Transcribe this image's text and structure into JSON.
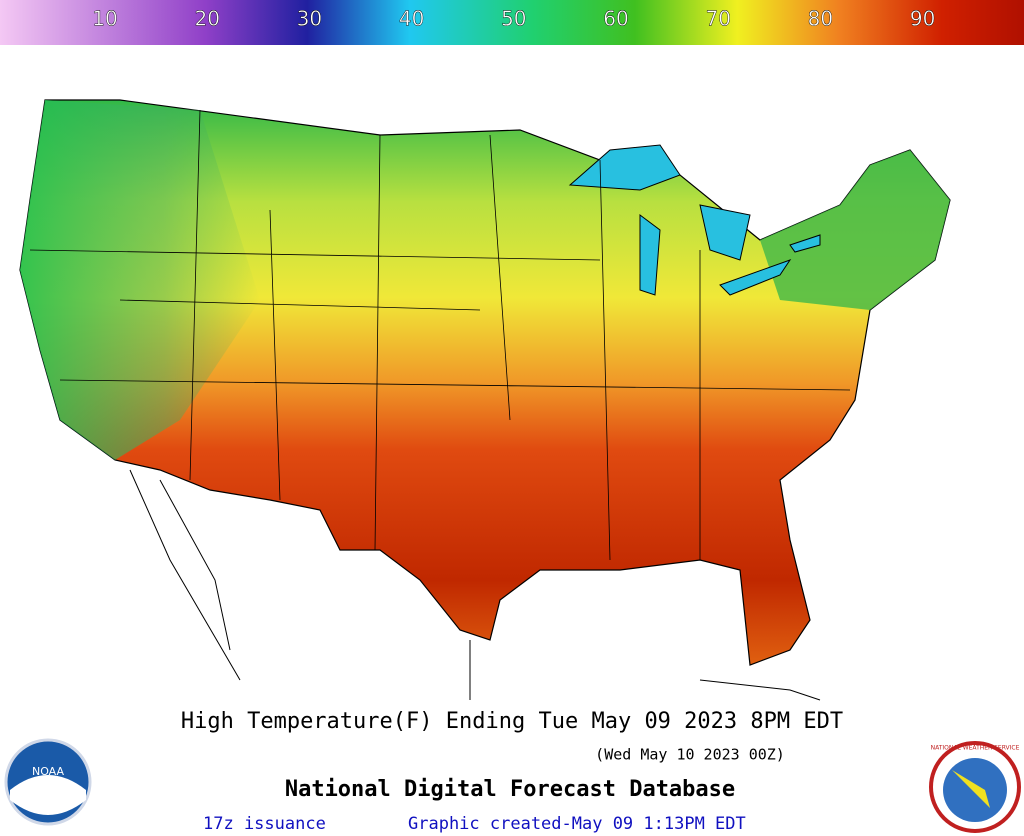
{
  "legend": {
    "labels": [
      10,
      20,
      30,
      40,
      50,
      60,
      70,
      80,
      90
    ]
  },
  "title": "High Temperature(F) Ending Tue May 09 2023  8PM EDT",
  "subtitle": "(Wed May 10 2023 00Z)",
  "source": "National Digital Forecast Database",
  "issuance": "17z issuance",
  "created": "Graphic created-May 09  1:13PM EDT",
  "logos": {
    "noaa": "NOAA",
    "nws": "NATIONAL WEATHER SERVICE"
  }
}
